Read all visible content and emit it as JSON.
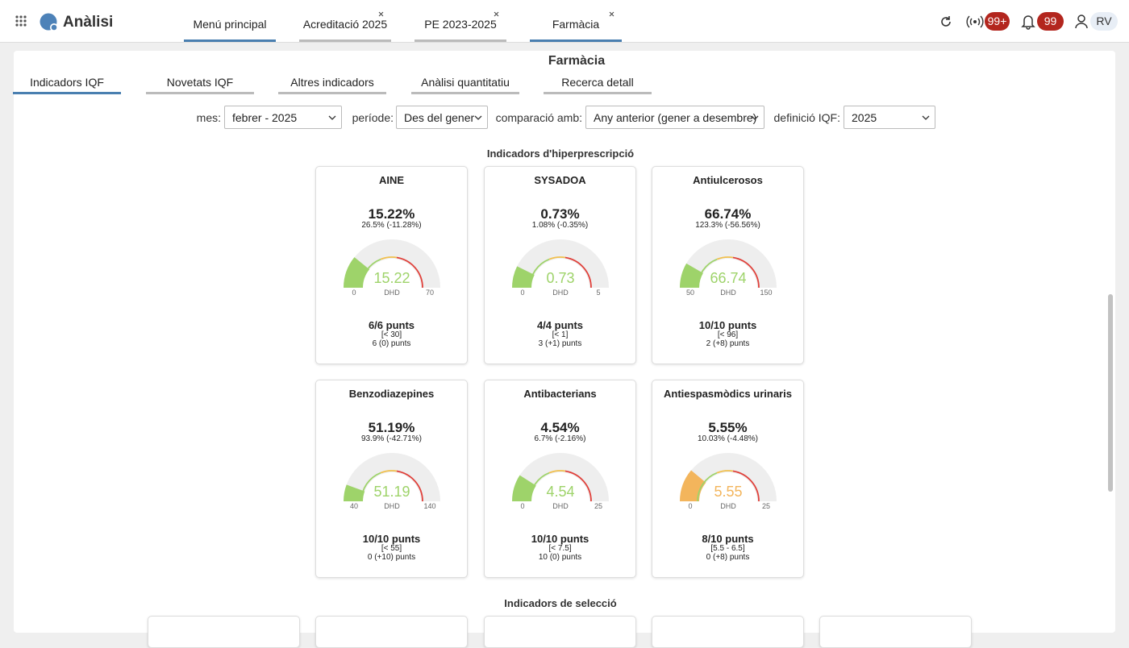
{
  "header": {
    "app_title": "Anàlisi",
    "tabs": [
      "Menú principal",
      "Acreditació 2025",
      "PE 2023-2025",
      "Farmàcia"
    ],
    "badges": [
      "99+",
      "99"
    ],
    "user": "RV"
  },
  "panel": {
    "title": "Farmàcia",
    "subtabs": [
      "Indicadors IQF",
      "Novetats IQF",
      "Altres indicadors",
      "Anàlisi quantitatiu",
      "Recerca detall"
    ],
    "filters": [
      {
        "label": "mes:",
        "value": "febrer - 2025"
      },
      {
        "label": "període:",
        "value": "Des del gener"
      },
      {
        "label": "comparació amb:",
        "value": "Any anterior (gener a desembre)"
      },
      {
        "label": "definició IQF:",
        "value": "2025"
      }
    ]
  },
  "sections": [
    {
      "title": "Indicadors d'hiperprescripció",
      "cards": [
        {
          "title": "AINE",
          "value_text": "15.22%",
          "comparison": "26.5% (-11.28%)",
          "gauge_value": 15.22,
          "min": 0,
          "max": 70,
          "unit": "DHD",
          "color": "#9ed36a",
          "points": "6/6 punts",
          "range": "[< 30]",
          "detail": "6 (0) punts"
        },
        {
          "title": "SYSADOA",
          "value_text": "0.73%",
          "comparison": "1.08% (-0.35%)",
          "gauge_value": 0.73,
          "min": 0,
          "max": 5,
          "unit": "DHD",
          "color": "#9ed36a",
          "points": "4/4 punts",
          "range": "[< 1]",
          "detail": "3 (+1) punts"
        },
        {
          "title": "Antiulcerosos",
          "value_text": "66.74%",
          "comparison": "123.3% (-56.56%)",
          "gauge_value": 66.74,
          "min": 50,
          "max": 150,
          "unit": "DHD",
          "color": "#9ed36a",
          "points": "10/10 punts",
          "range": "[< 96]",
          "detail": "2 (+8) punts"
        },
        {
          "title": "Benzodiazepines",
          "value_text": "51.19%",
          "comparison": "93.9% (-42.71%)",
          "gauge_value": 51.19,
          "min": 40,
          "max": 140,
          "unit": "DHD",
          "color": "#9ed36a",
          "points": "10/10 punts",
          "range": "[< 55]",
          "detail": "0 (+10) punts"
        },
        {
          "title": "Antibacterians",
          "value_text": "4.54%",
          "comparison": "6.7% (-2.16%)",
          "gauge_value": 4.54,
          "min": 0,
          "max": 25,
          "unit": "DHD",
          "color": "#9ed36a",
          "points": "10/10 punts",
          "range": "[< 7.5]",
          "detail": "10 (0) punts"
        },
        {
          "title": "Antiespasmòdics urinaris",
          "value_text": "5.55%",
          "comparison": "10.03% (-4.48%)",
          "gauge_value": 5.55,
          "min": 0,
          "max": 25,
          "unit": "DHD",
          "color": "#f3b55c",
          "points": "8/10 punts",
          "range": "[5.5 - 6.5]",
          "detail": "0 (+8) punts"
        }
      ]
    },
    {
      "title": "Indicadors de selecció",
      "cards": []
    }
  ]
}
